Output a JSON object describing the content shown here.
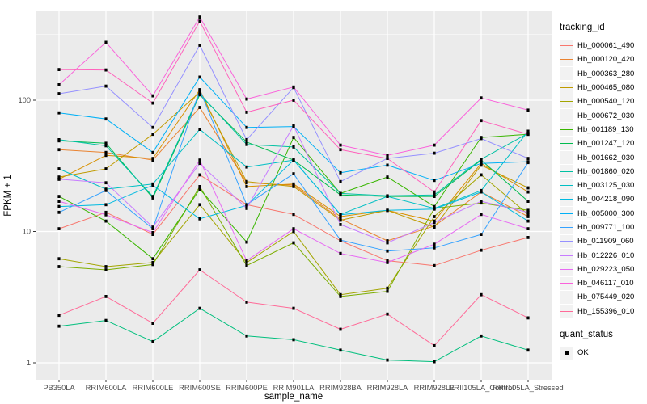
{
  "figure": {
    "kind": "ggplot2 line+point plot, log10 y scale",
    "panel_bg": "#EBEBEB",
    "grid_color": "#FFFFFF",
    "tick_text_color": "#4D4D4D",
    "axis_title_color": "#000000",
    "point_color": "#000000",
    "legend_key_bg": "#F2F2F2"
  },
  "legend": {
    "tracking_title": "tracking_id",
    "quant_title": "quant_status",
    "quant_items": [
      {
        "label": "OK"
      }
    ]
  },
  "chart_data": {
    "type": "line",
    "title": "",
    "xlabel": "sample_name",
    "ylabel": "FPKM + 1",
    "y_scale": "log10",
    "ylim": [
      1,
      500
    ],
    "y_ticks": [
      1,
      10,
      100
    ],
    "y_minor_ticks": [
      3.1623,
      31.623,
      316.23
    ],
    "grid": true,
    "legend_position": "right",
    "point_legend": {
      "title": "quant_status",
      "items": [
        "OK"
      ],
      "shape": "filled-black-square"
    },
    "categories": [
      "PB350LA",
      "RRIM600LA",
      "RRIM600LE",
      "RRIM600SE",
      "RRIM600PE",
      "RRIM901LA",
      "RRIM928BA",
      "RRIM928LA",
      "RRIM928LE",
      "RRII105LA_Control",
      "RRII105LA_Stressed"
    ],
    "series": [
      {
        "name": "Hb_000061_490",
        "color": "#F8766D",
        "values": [
          10.5,
          14,
          9.5,
          27,
          16,
          13.5,
          8.5,
          6,
          5.5,
          7.2,
          9
        ]
      },
      {
        "name": "Hb_000120_420",
        "color": "#EA8331",
        "values": [
          42,
          40,
          35,
          88,
          23.5,
          22.5,
          12.5,
          8.5,
          11,
          20,
          13
        ]
      },
      {
        "name": "Hb_000363_280",
        "color": "#D89000",
        "values": [
          25,
          38,
          36,
          120,
          22,
          23,
          13,
          14.5,
          12,
          33,
          20
        ]
      },
      {
        "name": "Hb_000465_080",
        "color": "#C09B00",
        "values": [
          26,
          30,
          55,
          115,
          24,
          22,
          12.2,
          14.5,
          10.8,
          32,
          21.5
        ]
      },
      {
        "name": "Hb_000540_120",
        "color": "#A3A500",
        "values": [
          6.2,
          5.4,
          5.8,
          16,
          5.8,
          10,
          3.3,
          3.7,
          13,
          27,
          13.5
        ]
      },
      {
        "name": "Hb_000672_030",
        "color": "#7CAE00",
        "values": [
          5.4,
          5.1,
          5.6,
          22,
          5.5,
          8.2,
          3.2,
          3.5,
          15,
          16.5,
          14.5
        ]
      },
      {
        "name": "Hb_001189_130",
        "color": "#39B600",
        "values": [
          18.5,
          12,
          6.2,
          21,
          8.3,
          52,
          19.5,
          26,
          15.5,
          52,
          55
        ]
      },
      {
        "name": "Hb_001247_120",
        "color": "#00BB4E",
        "values": [
          49,
          47,
          18,
          110,
          48,
          35,
          19,
          18.5,
          18.5,
          35,
          17
        ]
      },
      {
        "name": "Hb_001662_030",
        "color": "#00BF7D",
        "values": [
          1.9,
          2.1,
          1.45,
          2.6,
          1.6,
          1.5,
          1.25,
          1.05,
          1.02,
          1.6,
          1.25
        ]
      },
      {
        "name": "Hb_001860_020",
        "color": "#00C1A3",
        "values": [
          50,
          45,
          18.5,
          112,
          46,
          44,
          19.5,
          18.7,
          19,
          35.5,
          56
        ]
      },
      {
        "name": "Hb_003125_030",
        "color": "#00BFC4",
        "values": [
          30,
          21,
          23,
          60,
          31,
          35,
          13.5,
          18.5,
          15,
          20.5,
          58
        ]
      },
      {
        "name": "Hb_004218_090",
        "color": "#00BAE0",
        "values": [
          15.5,
          16,
          22.5,
          12.5,
          15.8,
          35,
          13.4,
          14.5,
          14.8,
          20,
          12
        ]
      },
      {
        "name": "Hb_005000_300",
        "color": "#00B0F6",
        "values": [
          80,
          72,
          40,
          150,
          62,
          63,
          28,
          32,
          24.5,
          33,
          34
        ]
      },
      {
        "name": "Hb_009771_100",
        "color": "#35A2FF",
        "values": [
          14,
          20.5,
          10.5,
          120,
          16,
          27.5,
          8.6,
          7.1,
          7.5,
          9.5,
          33.5
        ]
      },
      {
        "name": "Hb_011909_060",
        "color": "#9590FF",
        "values": [
          112,
          128,
          62,
          262,
          50,
          125,
          24,
          36,
          39.5,
          51,
          36
        ]
      },
      {
        "name": "Hb_012226_010",
        "color": "#C77CFF",
        "values": [
          25,
          23.5,
          10.8,
          33,
          15,
          64,
          11.3,
          8.2,
          11.7,
          17,
          14
        ]
      },
      {
        "name": "Hb_029223_050",
        "color": "#E76BF3",
        "values": [
          17,
          13.4,
          9.8,
          35,
          6,
          10.5,
          6.8,
          5.8,
          8,
          13.5,
          10.5
        ]
      },
      {
        "name": "Hb_046117_010",
        "color": "#FA62DB",
        "values": [
          131,
          276,
          108,
          430,
          102,
          126,
          45.5,
          38,
          45.5,
          104,
          84
        ]
      },
      {
        "name": "Hb_075449_020",
        "color": "#FF62BC",
        "values": [
          171,
          170,
          95,
          400,
          81,
          100,
          42,
          36,
          20,
          70,
          55
        ]
      },
      {
        "name": "Hb_155396_010",
        "color": "#FF6A98",
        "values": [
          2.3,
          3.2,
          2.0,
          5.1,
          2.9,
          2.6,
          1.8,
          2.35,
          1.35,
          3.3,
          2.2
        ]
      }
    ]
  }
}
